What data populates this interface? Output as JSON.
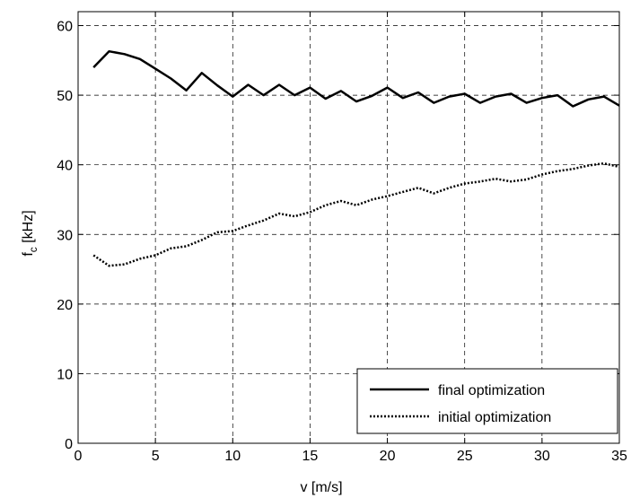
{
  "chart_data": {
    "type": "line",
    "title": "",
    "xlabel": "v [m/s]",
    "ylabel": {
      "main": "f",
      "sub": "c",
      "unit": " [kHz]"
    },
    "xlim": [
      0,
      35
    ],
    "ylim": [
      0,
      62
    ],
    "xticks": [
      0,
      5,
      10,
      15,
      20,
      25,
      30,
      35
    ],
    "yticks": [
      0,
      10,
      20,
      30,
      40,
      50,
      60
    ],
    "grid": true,
    "grid_style": "dashed",
    "legend_position": "bottom-right",
    "series": [
      {
        "name": "final optimization",
        "style": "solid",
        "color": "#000000",
        "x": [
          1,
          2,
          3,
          4,
          5,
          6,
          7,
          8,
          9,
          10,
          11,
          12,
          13,
          14,
          15,
          16,
          17,
          18,
          19,
          20,
          21,
          22,
          23,
          24,
          25,
          26,
          27,
          28,
          29,
          30,
          31,
          32,
          33,
          34,
          35
        ],
        "values": [
          54.0,
          56.3,
          55.9,
          55.2,
          53.8,
          52.4,
          50.7,
          53.2,
          51.4,
          49.8,
          51.5,
          50.0,
          51.5,
          50.0,
          51.1,
          49.5,
          50.6,
          49.1,
          49.9,
          51.1,
          49.6,
          50.4,
          48.9,
          49.8,
          50.2,
          48.9,
          49.8,
          50.2,
          48.9,
          49.6,
          50.0,
          48.4,
          49.4,
          49.8,
          48.5
        ]
      },
      {
        "name": "initial optimization",
        "style": "dotted",
        "color": "#000000",
        "x": [
          1,
          2,
          3,
          4,
          5,
          6,
          7,
          8,
          9,
          10,
          11,
          12,
          13,
          14,
          15,
          16,
          17,
          18,
          19,
          20,
          21,
          22,
          23,
          24,
          25,
          26,
          27,
          28,
          29,
          30,
          31,
          32,
          33,
          34,
          35
        ],
        "values": [
          27.0,
          25.5,
          25.7,
          26.5,
          27.0,
          28.0,
          28.3,
          29.2,
          30.3,
          30.5,
          31.3,
          32.0,
          33.0,
          32.6,
          33.2,
          34.2,
          34.8,
          34.2,
          35.0,
          35.5,
          36.1,
          36.7,
          35.9,
          36.7,
          37.3,
          37.6,
          38.0,
          37.6,
          37.9,
          38.6,
          39.1,
          39.4,
          39.9,
          40.2,
          39.7
        ]
      }
    ]
  }
}
